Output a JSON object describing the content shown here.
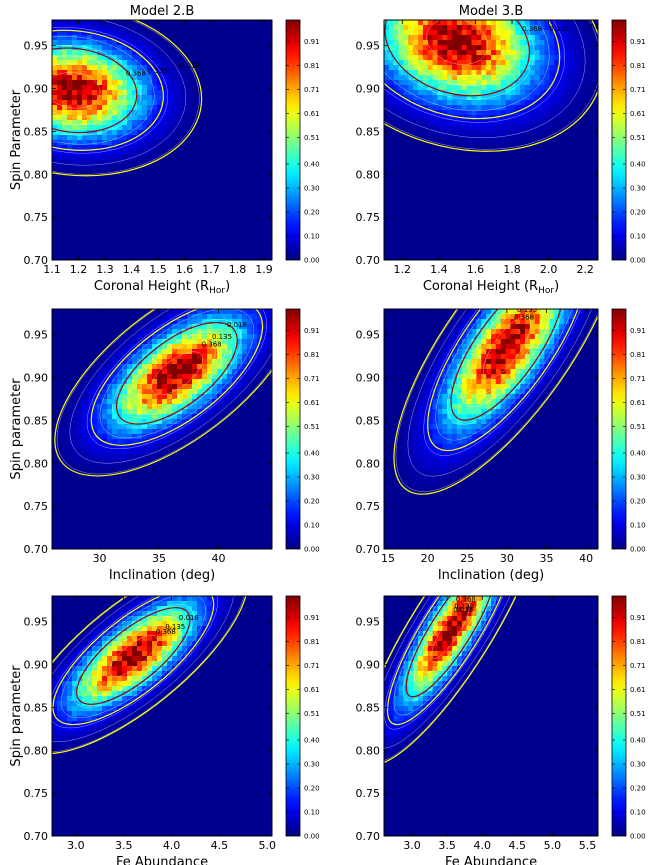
{
  "figure": {
    "colormap": "jet",
    "background_color": "#00008f",
    "contour_colors": {
      "outer": "#ffff00",
      "inner": "#a00000",
      "fill_lines": "#ffffff"
    }
  },
  "chart_data": [
    {
      "type": "heatmap",
      "title": "Model 2.B",
      "xlabel": "Coronal Height (R",
      "xlabel_sub": "Hor",
      "xlabel_close": ")",
      "ylabel": "Spin Parameter",
      "xlim": [
        1.1,
        1.93
      ],
      "ylim": [
        0.7,
        0.98
      ],
      "xticks": [
        "1.1",
        "1.2",
        "1.3",
        "1.4",
        "1.5",
        "1.6",
        "1.7",
        "1.8",
        "1.9"
      ],
      "xtick_values": [
        1.1,
        1.2,
        1.3,
        1.4,
        1.5,
        1.6,
        1.7,
        1.8,
        1.9
      ],
      "yticks": [
        "0.70",
        "0.75",
        "0.80",
        "0.85",
        "0.90",
        "0.95"
      ],
      "ytick_values": [
        0.7,
        0.75,
        0.8,
        0.85,
        0.9,
        0.95
      ],
      "peak": {
        "x": 1.18,
        "y": 0.898
      },
      "spread": {
        "x": 0.17,
        "y": 0.035
      },
      "rho": -0.1,
      "contour_labels": [
        "0.368",
        "0.135",
        "0.018"
      ],
      "colorbar": [
        "0.91",
        "0.81",
        "0.71",
        "0.61",
        "0.51",
        "0.40",
        "0.30",
        "0.20",
        "0.10",
        "0.00"
      ]
    },
    {
      "type": "heatmap",
      "title": "Model 3.B",
      "xlabel": "Coronal Height (R",
      "xlabel_sub": "Hor",
      "xlabel_close": ")",
      "ylabel": "",
      "xlim": [
        1.1,
        2.27
      ],
      "ylim": [
        0.7,
        0.98
      ],
      "xticks": [
        "1.2",
        "1.4",
        "1.6",
        "1.8",
        "2.0",
        "2.2"
      ],
      "xtick_values": [
        1.2,
        1.4,
        1.6,
        1.8,
        2.0,
        2.2
      ],
      "yticks": [
        "0.70",
        "0.75",
        "0.80",
        "0.85",
        "0.90",
        "0.95"
      ],
      "ytick_values": [
        0.7,
        0.75,
        0.8,
        0.85,
        0.9,
        0.95
      ],
      "peak": {
        "x": 1.5,
        "y": 0.955
      },
      "spread": {
        "x": 0.28,
        "y": 0.045
      },
      "rho": -0.2,
      "contour_labels": [
        "0.368",
        "0.135",
        "0.018"
      ],
      "colorbar": [
        "0.91",
        "0.81",
        "0.71",
        "0.61",
        "0.51",
        "0.40",
        "0.30",
        "0.20",
        "0.10",
        "0.00"
      ]
    },
    {
      "type": "heatmap",
      "title": "",
      "xlabel": "Inclination (deg)",
      "ylabel": "Spin parameter",
      "xlim": [
        26,
        44.5
      ],
      "ylim": [
        0.7,
        0.98
      ],
      "xticks": [
        "30",
        "35",
        "40"
      ],
      "xtick_values": [
        30,
        35,
        40
      ],
      "yticks": [
        "0.70",
        "0.75",
        "0.80",
        "0.85",
        "0.90",
        "0.95"
      ],
      "ytick_values": [
        0.7,
        0.75,
        0.8,
        0.85,
        0.9,
        0.95
      ],
      "peak": {
        "x": 36.5,
        "y": 0.905
      },
      "spread": {
        "x": 3.6,
        "y": 0.042
      },
      "rho": 0.65,
      "contour_labels": [
        "0.368",
        "0.135",
        "0.018"
      ],
      "colorbar": [
        "0.91",
        "0.81",
        "0.71",
        "0.61",
        "0.51",
        "0.40",
        "0.30",
        "0.20",
        "0.10",
        "0.00"
      ]
    },
    {
      "type": "heatmap",
      "title": "",
      "xlabel": "Inclination (deg)",
      "ylabel": "",
      "xlim": [
        14.5,
        41.5
      ],
      "ylim": [
        0.7,
        0.98
      ],
      "xticks": [
        "15",
        "20",
        "25",
        "30",
        "35",
        "40"
      ],
      "xtick_values": [
        15,
        20,
        25,
        30,
        35,
        40
      ],
      "yticks": [
        "0.70",
        "0.75",
        "0.80",
        "0.85",
        "0.90",
        "0.95"
      ],
      "ytick_values": [
        0.7,
        0.75,
        0.8,
        0.85,
        0.9,
        0.95
      ],
      "peak": {
        "x": 30,
        "y": 0.935
      },
      "spread": {
        "x": 5.0,
        "y": 0.06
      },
      "rho": 0.75,
      "contour_labels": [
        "0.368",
        "0.135",
        "0.018"
      ],
      "colorbar": [
        "0.91",
        "0.81",
        "0.71",
        "0.61",
        "0.51",
        "0.40",
        "0.30",
        "0.20",
        "0.10",
        "0.00"
      ]
    },
    {
      "type": "heatmap",
      "title": "",
      "xlabel": "Fe Abundance",
      "ylabel": "Spin parameter",
      "xlim": [
        2.75,
        5.05
      ],
      "ylim": [
        0.7,
        0.98
      ],
      "xticks": [
        "3.0",
        "3.5",
        "4.0",
        "4.5",
        "5.0"
      ],
      "xtick_values": [
        3.0,
        3.5,
        4.0,
        4.5,
        5.0
      ],
      "yticks": [
        "0.70",
        "0.75",
        "0.80",
        "0.85",
        "0.90",
        "0.95"
      ],
      "ytick_values": [
        0.7,
        0.75,
        0.8,
        0.85,
        0.9,
        0.95
      ],
      "peak": {
        "x": 3.6,
        "y": 0.91
      },
      "spread": {
        "x": 0.42,
        "y": 0.04
      },
      "rho": 0.75,
      "contour_labels": [
        "0.368",
        "0.135",
        "0.018"
      ],
      "colorbar": [
        "0.91",
        "0.81",
        "0.71",
        "0.61",
        "0.51",
        "0.40",
        "0.30",
        "0.20",
        "0.10",
        "0.00"
      ]
    },
    {
      "type": "heatmap",
      "title": "",
      "xlabel": "Fe Abundance",
      "ylabel": "",
      "xlim": [
        2.6,
        5.65
      ],
      "ylim": [
        0.7,
        0.98
      ],
      "xticks": [
        "3.0",
        "3.5",
        "4.0",
        "4.5",
        "5.0",
        "5.5"
      ],
      "xtick_values": [
        3.0,
        3.5,
        4.0,
        4.5,
        5.0,
        5.5
      ],
      "yticks": [
        "0.70",
        "0.75",
        "0.80",
        "0.85",
        "0.90",
        "0.95"
      ],
      "ytick_values": [
        0.7,
        0.75,
        0.8,
        0.85,
        0.9,
        0.95
      ],
      "peak": {
        "x": 3.55,
        "y": 0.94
      },
      "spread": {
        "x": 0.45,
        "y": 0.055
      },
      "rho": 0.85,
      "contour_labels": [
        "0.018",
        "0.135",
        "0.368"
      ],
      "colorbar": [
        "0.91",
        "0.81",
        "0.71",
        "0.61",
        "0.51",
        "0.40",
        "0.30",
        "0.20",
        "0.10",
        "0.00"
      ]
    }
  ]
}
